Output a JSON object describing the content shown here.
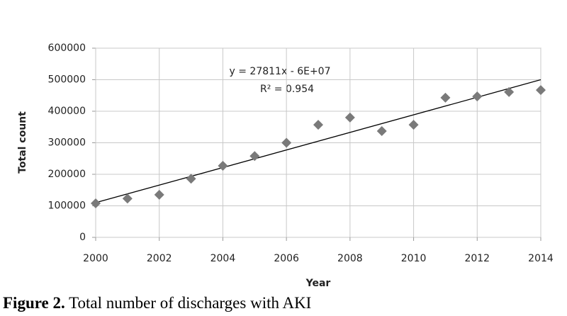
{
  "chart_data": {
    "type": "scatter",
    "x_label": "Year",
    "y_label": "Total count",
    "x": [
      2000,
      2001,
      2002,
      2003,
      2004,
      2005,
      2006,
      2007,
      2008,
      2009,
      2010,
      2011,
      2012,
      2013,
      2014
    ],
    "values": [
      108000,
      123000,
      135000,
      186000,
      227000,
      258000,
      300000,
      357000,
      380000,
      337000,
      357000,
      443000,
      447000,
      461000,
      467000
    ],
    "color": "#7a7a7a",
    "trendline": {
      "x": [
        2000,
        2014
      ],
      "y": [
        110000,
        500000
      ],
      "color": "#000000"
    },
    "annotations": [
      "y = 27811x - 6E+07",
      "R² = 0.954"
    ],
    "xlim": [
      2000,
      2014
    ],
    "xticks": [
      2000,
      2002,
      2004,
      2006,
      2008,
      2010,
      2012,
      2014
    ],
    "ylim": [
      0,
      600000
    ],
    "yticks": [
      0,
      100000,
      200000,
      300000,
      400000,
      500000,
      600000
    ],
    "grid": true
  },
  "caption": {
    "label": "Figure 2.",
    "text": "Total number of discharges with AKI"
  }
}
